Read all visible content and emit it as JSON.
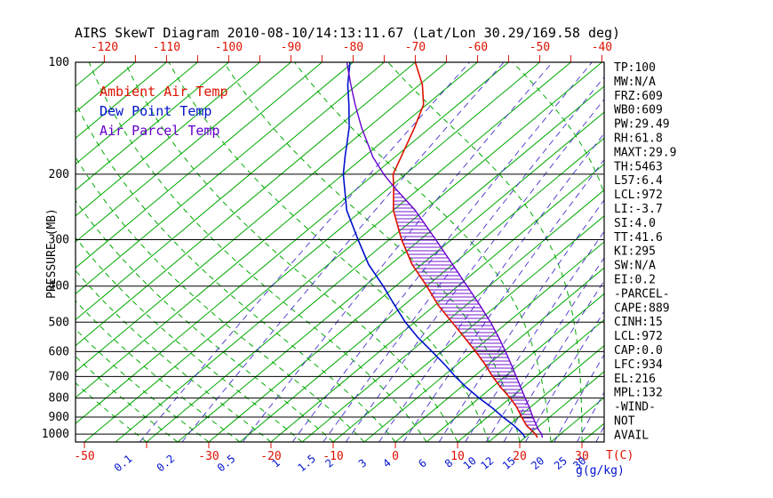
{
  "title": "AIRS SkewT Diagram 2010-08-10/14:13:11.67 (Lat/Lon 30.29/169.58 deg)",
  "y_axis_label": "PRESSURE (MB)",
  "x_axis_label": "T(C)",
  "mixing_axis_label": "g(g/kg)",
  "legend": [
    {
      "label": "Ambient Air Temp",
      "color": "#dd1100"
    },
    {
      "label": "Dew Point Temp",
      "color": "#0011cc"
    },
    {
      "label": "Air Parcel Temp",
      "color": "#6600cc"
    }
  ],
  "axes": {
    "pressure_ticks": [
      100,
      200,
      300,
      400,
      500,
      600,
      700,
      800,
      900,
      1000
    ],
    "top_temp_labels": [
      -120,
      -110,
      -100,
      -90,
      -80,
      -70,
      -60,
      -50,
      -40
    ],
    "bottom_temp_labels": [
      -50,
      -30,
      -20,
      -10,
      0,
      10,
      20,
      30
    ],
    "mixing_ratio_values": [
      0.1,
      0.2,
      0.5,
      1,
      1.5,
      2,
      3,
      4,
      6,
      8,
      10,
      12,
      15,
      20,
      25,
      30
    ]
  },
  "stats_panel": [
    "TP:100",
    "MW:N/A",
    "FRZ:609",
    "WB0:609",
    "PW:29.49",
    "RH:61.8",
    "MAXT:29.9",
    "TH:5463",
    "L57:6.4",
    "LCL:972",
    "LI:-3.7",
    "SI:4.0",
    "TT:41.6",
    "KI:295",
    "SW:N/A",
    "EI:0.2",
    "-PARCEL-",
    "CAPE:889",
    "CINH:15",
    "LCL:972",
    "CAP:0.0",
    "LFC:934",
    "EL:216",
    "MPL:132",
    "-WIND-",
    "NOT",
    "AVAIL"
  ],
  "colors": {
    "isotherm": "#00aa00",
    "moist_adiabat": "#00aa00",
    "mixing_ratio": "#4433cc",
    "pressure_line": "#000000",
    "border": "#000000",
    "ambient": "#dd1100",
    "dewpoint": "#0011cc",
    "parcel": "#6600cc",
    "hatch": "#6600cc",
    "axis_text_temp": "#dd1100",
    "axis_text_mixing": "#0011cc",
    "text": "#000000"
  },
  "chart_data": {
    "type": "line",
    "title": "AIRS SkewT Diagram 2010-08-10/14:13:11.67 (Lat/Lon 30.29/169.58 deg)",
    "x_axis": {
      "label": "T(C)",
      "unit": "deg C",
      "skewed": true
    },
    "y_axis": {
      "label": "PRESSURE (MB)",
      "scale": "log",
      "range": [
        100,
        1050
      ]
    },
    "grid": {
      "isotherm_step_c": 5,
      "moist_adiabat_surface_temps_c_range": [
        -40,
        45
      ],
      "mixing_ratio_lines_g_kg": [
        0.1,
        0.2,
        0.5,
        1,
        1.5,
        2,
        3,
        4,
        6,
        8,
        10,
        12,
        15,
        20,
        25,
        30
      ]
    },
    "series": [
      {
        "name": "Ambient Air Temp",
        "color": "#dd1100",
        "points": [
          [
            1022,
            22
          ],
          [
            1000,
            21
          ],
          [
            950,
            18
          ],
          [
            900,
            15.5
          ],
          [
            850,
            13
          ],
          [
            800,
            10
          ],
          [
            750,
            6.5
          ],
          [
            700,
            3
          ],
          [
            650,
            -0.5
          ],
          [
            600,
            -4.5
          ],
          [
            550,
            -9
          ],
          [
            500,
            -14
          ],
          [
            450,
            -19.5
          ],
          [
            400,
            -25
          ],
          [
            350,
            -31.5
          ],
          [
            300,
            -38
          ],
          [
            250,
            -45
          ],
          [
            216,
            -49.5
          ],
          [
            200,
            -52
          ],
          [
            180,
            -54
          ],
          [
            150,
            -57.5
          ],
          [
            130,
            -60.5
          ],
          [
            115,
            -64.5
          ],
          [
            100,
            -70
          ]
        ]
      },
      {
        "name": "Dew Point Temp",
        "color": "#0011cc",
        "points": [
          [
            1022,
            20
          ],
          [
            1000,
            19
          ],
          [
            950,
            16
          ],
          [
            900,
            12.5
          ],
          [
            850,
            9
          ],
          [
            800,
            5
          ],
          [
            750,
            1
          ],
          [
            700,
            -3
          ],
          [
            650,
            -7
          ],
          [
            600,
            -11.5
          ],
          [
            550,
            -16.5
          ],
          [
            500,
            -21.5
          ],
          [
            450,
            -26.5
          ],
          [
            400,
            -32
          ],
          [
            350,
            -38.5
          ],
          [
            300,
            -45
          ],
          [
            250,
            -52.5
          ],
          [
            200,
            -60
          ],
          [
            180,
            -63
          ],
          [
            150,
            -68
          ],
          [
            130,
            -72.5
          ],
          [
            115,
            -76.5
          ],
          [
            100,
            -80.5
          ]
        ]
      },
      {
        "name": "Air Parcel Temp",
        "color": "#6600cc",
        "points": [
          [
            1022,
            22.8
          ],
          [
            1000,
            22
          ],
          [
            972,
            20.6
          ],
          [
            950,
            19.6
          ],
          [
            900,
            17.3
          ],
          [
            850,
            15
          ],
          [
            800,
            12.4
          ],
          [
            750,
            9.7
          ],
          [
            700,
            6.8
          ],
          [
            650,
            3.7
          ],
          [
            600,
            0.3
          ],
          [
            550,
            -3.5
          ],
          [
            500,
            -7.8
          ],
          [
            450,
            -12.8
          ],
          [
            400,
            -18.5
          ],
          [
            350,
            -25
          ],
          [
            300,
            -32.5
          ],
          [
            250,
            -41.5
          ],
          [
            216,
            -49.5
          ],
          [
            200,
            -53.5
          ],
          [
            180,
            -58.5
          ],
          [
            150,
            -66
          ],
          [
            130,
            -71.5
          ],
          [
            115,
            -76
          ],
          [
            100,
            -81
          ]
        ]
      }
    ],
    "cape_hatch_pressure_range": [
      216,
      975
    ]
  }
}
